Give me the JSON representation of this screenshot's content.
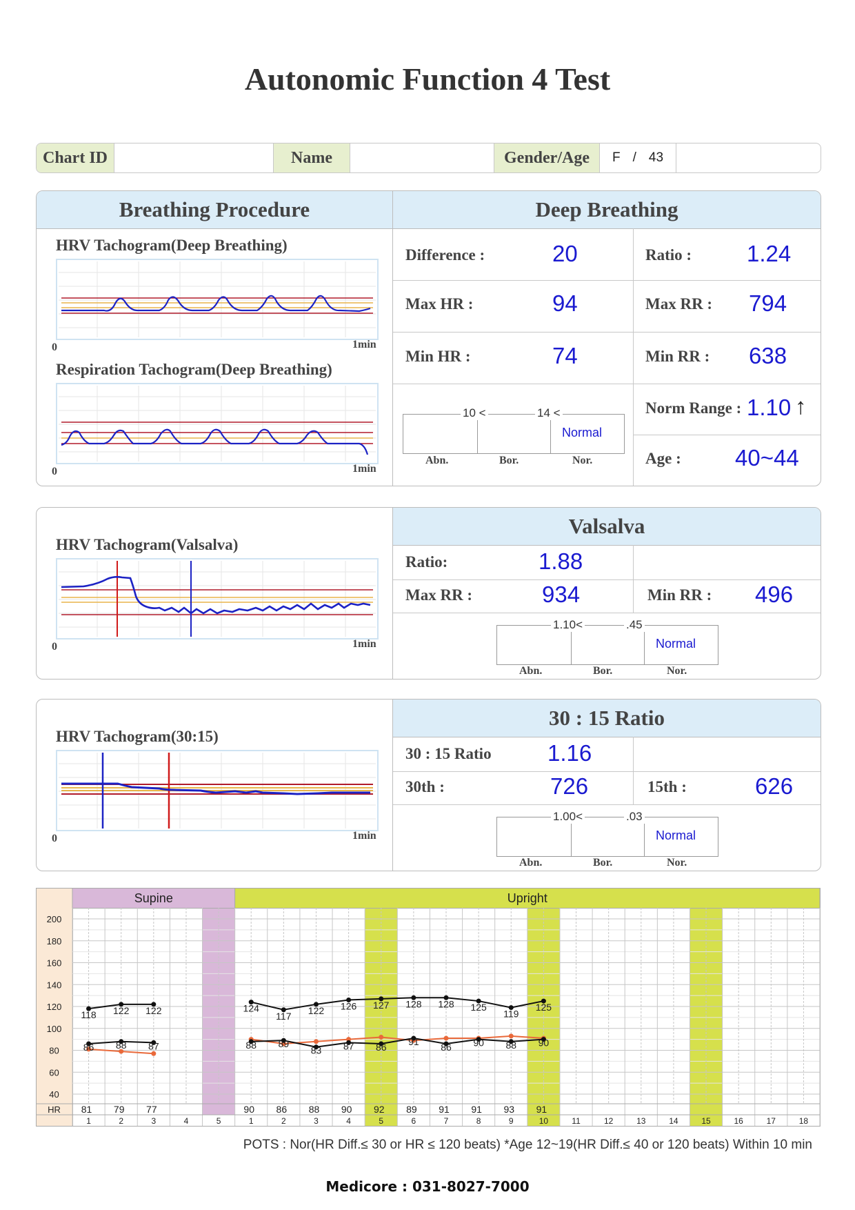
{
  "title": "Autonomic Function 4 Test",
  "patient": {
    "chart_id_label": "Chart ID",
    "chart_id": "",
    "name_label": "Name",
    "name": "",
    "gender_age_label": "Gender/Age",
    "gender": "F",
    "separator": "/",
    "age": "43"
  },
  "breathing": {
    "header": "Breathing Procedure",
    "hrv_title": "HRV Tachogram(Deep Breathing)",
    "resp_title": "Respiration Tachogram(Deep Breathing)",
    "axis_start": "0",
    "axis_end": "1min"
  },
  "deep": {
    "header": "Deep Breathing",
    "difference_label": "Difference :",
    "difference": "20",
    "ratio_label": "Ratio :",
    "ratio": "1.24",
    "max_hr_label": "Max HR :",
    "max_hr": "94",
    "max_rr_label": "Max RR :",
    "max_rr": "794",
    "min_hr_label": "Min HR :",
    "min_hr": "74",
    "min_rr_label": "Min RR :",
    "min_rr": "638",
    "norm_label": "Norm Range :",
    "norm_value": "1.10",
    "norm_arrow": "↑",
    "age_label": "Age :",
    "age_range": "40~44",
    "scale": {
      "t1": "10 <",
      "t2": "14 <",
      "result": "Normal",
      "abn": "Abn.",
      "bor": "Bor.",
      "nor": "Nor."
    }
  },
  "valsalva": {
    "chart_title": "HRV Tachogram(Valsalva)",
    "axis_start": "0",
    "axis_end": "1min",
    "header": "Valsalva",
    "ratio_label": "Ratio:",
    "ratio": "1.88",
    "max_rr_label": "Max RR :",
    "max_rr": "934",
    "min_rr_label": "Min RR :",
    "min_rr": "496",
    "scale": {
      "t1": "1.10<",
      "t2": ".45",
      "result": "Normal",
      "abn": "Abn.",
      "bor": "Bor.",
      "nor": "Nor."
    }
  },
  "ratio3015": {
    "chart_title": "HRV Tachogram(30:15)",
    "axis_start": "0",
    "axis_end": "1min",
    "header": "30 : 15 Ratio",
    "ratio_label": "30 : 15 Ratio",
    "ratio": "1.16",
    "r30_label": "30th :",
    "r30": "726",
    "r15_label": "15th :",
    "r15": "626",
    "scale": {
      "t1": "1.00<",
      "t2": ".03",
      "result": "Normal",
      "abn": "Abn.",
      "bor": "Bor.",
      "nor": "Nor."
    }
  },
  "tilt": {
    "supine_label": "Supine",
    "upright_label": "Upright",
    "hr_label": "HR",
    "y_ticks": [
      200,
      180,
      160,
      140,
      120,
      100,
      80,
      60,
      40
    ],
    "columns": [
      "1",
      "2",
      "3",
      "4",
      "5",
      "1",
      "2",
      "3",
      "4",
      "5",
      "6",
      "7",
      "8",
      "9",
      "10",
      "11",
      "12",
      "13",
      "14",
      "15",
      "16",
      "17",
      "18"
    ],
    "hr_values": [
      "81",
      "79",
      "77",
      "",
      "",
      "90",
      "86",
      "88",
      "90",
      "92",
      "89",
      "91",
      "91",
      "93",
      "91",
      "",
      "",
      "",
      "",
      "",
      "",
      "",
      ""
    ],
    "supine_systolic": [
      118,
      122,
      122
    ],
    "supine_diastolic": [
      86,
      88,
      87
    ],
    "supine_hr": [
      81,
      79,
      77
    ],
    "upright_systolic": [
      124,
      117,
      122,
      126,
      127,
      128,
      128,
      125,
      119,
      125
    ],
    "upright_diastolic": [
      88,
      89,
      83,
      87,
      86,
      91,
      86,
      90,
      88,
      90
    ],
    "upright_hr": [
      90,
      86,
      88,
      90,
      92,
      89,
      91,
      91,
      93,
      91
    ]
  },
  "footer": {
    "pots_note": "POTS : Nor(HR Diff.≤ 30 or HR ≤ 120 beats) *Age 12~19(HR Diff.≤ 40 or 120 beats) Within 10 min",
    "company": "Medicore : 031-8027-7000"
  },
  "colors": {
    "header_bg": "#dcedf8",
    "label_bg": "#e7efcf",
    "value_blue": "#1a1ad0",
    "supine": "#d9b8d9",
    "upright": "#d6e04c",
    "orange": "#e9693a"
  }
}
